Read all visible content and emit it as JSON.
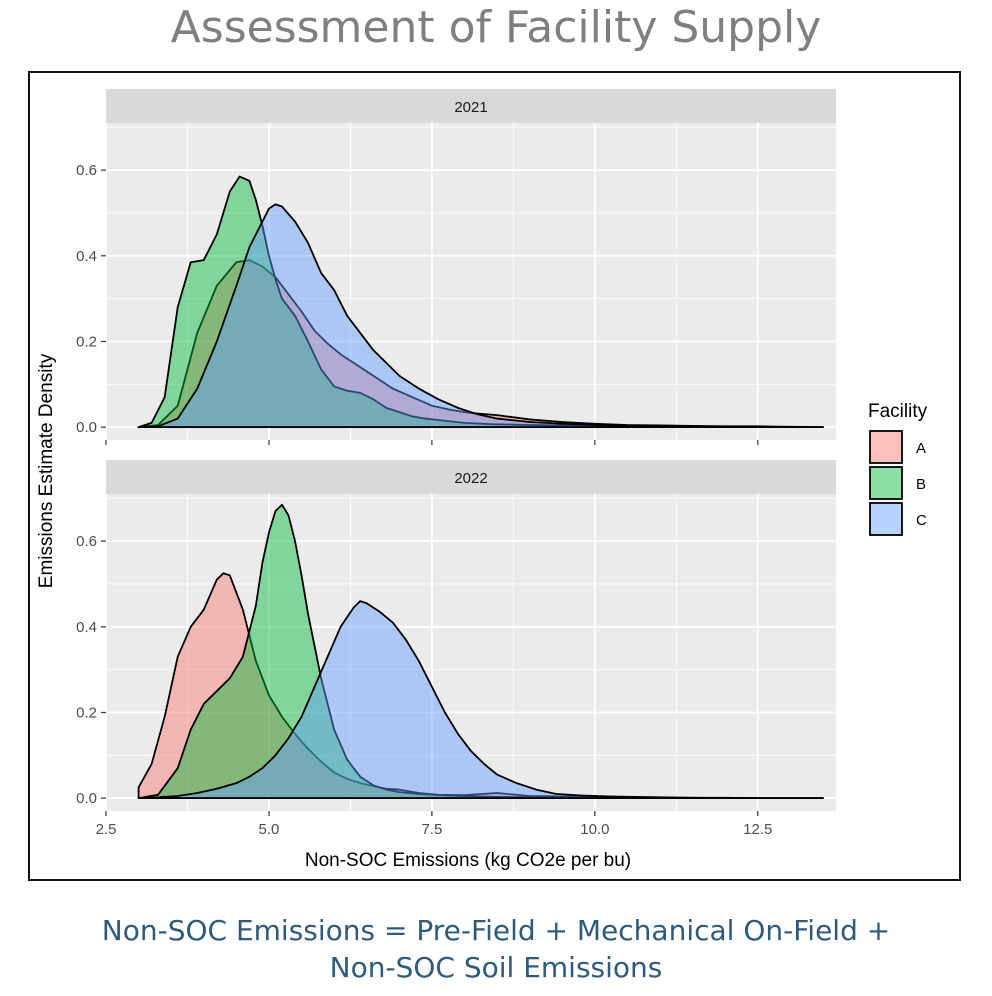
{
  "page": {
    "title": "Assessment of Facility Supply",
    "caption_line1": "Non-SOC Emissions = Pre-Field + Mechanical On-Field +",
    "caption_line2": "Non-SOC Soil Emissions"
  },
  "chart_data": {
    "type": "area",
    "subtype": "density, faceted by year",
    "xlabel": "Non-SOC Emissions (kg CO2e per bu)",
    "ylabel": "Emissions Estimate Density",
    "xlim": [
      2.5,
      13.7
    ],
    "ylim": [
      -0.03,
      0.71
    ],
    "x_ticks": [
      2.5,
      5.0,
      7.5,
      10.0,
      12.5
    ],
    "x_tick_labels": [
      "2.5",
      "5.0",
      "7.5",
      "10.0",
      "12.5"
    ],
    "y_ticks": [
      0.0,
      0.2,
      0.4,
      0.6
    ],
    "y_tick_labels": [
      "0.0",
      "0.2",
      "0.4",
      "0.6"
    ],
    "grid": true,
    "legend": {
      "title": "Facility",
      "position": "right",
      "entries": [
        {
          "label": "A",
          "color": "#F8766D"
        },
        {
          "label": "B",
          "color": "#00BA38"
        },
        {
          "label": "C",
          "color": "#619CFF"
        }
      ]
    },
    "facets": [
      {
        "label": "2021",
        "series": [
          {
            "name": "A",
            "color": "#F8766D",
            "x": [
              3.0,
              3.3,
              3.6,
              3.9,
              4.2,
              4.5,
              4.7,
              4.9,
              5.1,
              5.3,
              5.5,
              5.7,
              5.9,
              6.1,
              6.3,
              6.6,
              6.9,
              7.2,
              7.5,
              7.8,
              8.1,
              8.5,
              9.0,
              9.5,
              10.0,
              10.5,
              11.0,
              11.5,
              12.0,
              12.5,
              13.0,
              13.5
            ],
            "y": [
              0.0,
              0.005,
              0.05,
              0.22,
              0.33,
              0.385,
              0.39,
              0.375,
              0.35,
              0.31,
              0.27,
              0.225,
              0.195,
              0.17,
              0.15,
              0.12,
              0.09,
              0.07,
              0.05,
              0.04,
              0.033,
              0.028,
              0.018,
              0.012,
              0.008,
              0.005,
              0.004,
              0.003,
              0.002,
              0.002,
              0.001,
              0.0
            ]
          },
          {
            "name": "B",
            "color": "#00BA38",
            "x": [
              3.0,
              3.2,
              3.4,
              3.6,
              3.8,
              4.0,
              4.2,
              4.4,
              4.55,
              4.7,
              4.8,
              4.9,
              5.0,
              5.1,
              5.2,
              5.4,
              5.6,
              5.8,
              6.0,
              6.2,
              6.4,
              6.6,
              6.8,
              7.0,
              7.2,
              7.4,
              7.7,
              8.0,
              8.4,
              9.0,
              9.5,
              10.0,
              10.5,
              11.0,
              11.5,
              12.0,
              12.5,
              13.0,
              13.5
            ],
            "y": [
              0.0,
              0.01,
              0.07,
              0.28,
              0.385,
              0.39,
              0.45,
              0.55,
              0.585,
              0.575,
              0.53,
              0.47,
              0.4,
              0.345,
              0.3,
              0.26,
              0.2,
              0.135,
              0.095,
              0.085,
              0.08,
              0.065,
              0.045,
              0.035,
              0.025,
              0.02,
              0.015,
              0.01,
              0.007,
              0.005,
              0.004,
              0.003,
              0.003,
              0.002,
              0.001,
              0.001,
              0.0,
              0.0,
              0.0
            ]
          },
          {
            "name": "C",
            "color": "#619CFF",
            "x": [
              3.0,
              3.3,
              3.6,
              3.9,
              4.2,
              4.5,
              4.7,
              4.9,
              5.0,
              5.1,
              5.2,
              5.4,
              5.6,
              5.8,
              6.0,
              6.2,
              6.4,
              6.6,
              6.8,
              7.0,
              7.3,
              7.6,
              7.9,
              8.2,
              8.5,
              9.0,
              9.5,
              10.0,
              10.5,
              11.0,
              11.5,
              12.0,
              12.5,
              13.0,
              13.5
            ],
            "y": [
              0.0,
              0.002,
              0.02,
              0.09,
              0.2,
              0.33,
              0.42,
              0.48,
              0.51,
              0.52,
              0.515,
              0.48,
              0.43,
              0.36,
              0.32,
              0.26,
              0.22,
              0.18,
              0.15,
              0.12,
              0.09,
              0.065,
              0.045,
              0.03,
              0.02,
              0.012,
              0.008,
              0.005,
              0.004,
              0.003,
              0.002,
              0.001,
              0.001,
              0.0,
              0.0
            ]
          }
        ]
      },
      {
        "label": "2022",
        "series": [
          {
            "name": "A",
            "color": "#F8766D",
            "x": [
              3.0,
              3.2,
              3.4,
              3.6,
              3.8,
              4.0,
              4.2,
              4.3,
              4.4,
              4.6,
              4.8,
              5.0,
              5.2,
              5.4,
              5.6,
              5.8,
              6.0,
              6.2,
              6.4,
              6.6,
              6.8,
              7.0,
              7.3,
              7.6,
              8.0,
              8.5,
              9.0,
              9.5,
              10.0,
              10.5,
              11.0,
              11.5,
              12.0,
              12.5,
              13.0,
              13.5
            ],
            "y": [
              0.025,
              0.08,
              0.19,
              0.33,
              0.4,
              0.44,
              0.51,
              0.525,
              0.52,
              0.44,
              0.32,
              0.24,
              0.19,
              0.15,
              0.115,
              0.085,
              0.06,
              0.045,
              0.035,
              0.028,
              0.022,
              0.02,
              0.012,
              0.008,
              0.007,
              0.012,
              0.005,
              0.004,
              0.003,
              0.002,
              0.001,
              0.001,
              0.0,
              0.0,
              0.0,
              0.0
            ]
          },
          {
            "name": "B",
            "color": "#00BA38",
            "x": [
              3.0,
              3.3,
              3.6,
              3.8,
              4.0,
              4.2,
              4.4,
              4.6,
              4.8,
              4.9,
              5.0,
              5.1,
              5.2,
              5.3,
              5.4,
              5.5,
              5.6,
              5.8,
              6.0,
              6.2,
              6.4,
              6.6,
              6.8,
              7.0,
              7.3,
              7.6,
              8.0,
              8.5,
              9.0,
              9.5,
              10.0,
              10.5,
              11.0,
              11.5,
              12.0,
              12.5,
              13.0,
              13.5
            ],
            "y": [
              0.0,
              0.008,
              0.07,
              0.16,
              0.22,
              0.25,
              0.28,
              0.33,
              0.45,
              0.55,
              0.62,
              0.67,
              0.685,
              0.66,
              0.6,
              0.52,
              0.43,
              0.28,
              0.16,
              0.09,
              0.05,
              0.03,
              0.02,
              0.014,
              0.01,
              0.007,
              0.005,
              0.003,
              0.002,
              0.001,
              0.001,
              0.0,
              0.0,
              0.0,
              0.0,
              0.0,
              0.0,
              0.0
            ]
          },
          {
            "name": "C",
            "color": "#619CFF",
            "x": [
              3.0,
              3.3,
              3.6,
              3.9,
              4.2,
              4.5,
              4.7,
              4.9,
              5.1,
              5.3,
              5.5,
              5.7,
              5.9,
              6.1,
              6.3,
              6.4,
              6.5,
              6.6,
              6.7,
              6.9,
              7.1,
              7.3,
              7.5,
              7.7,
              7.9,
              8.1,
              8.3,
              8.5,
              8.8,
              9.1,
              9.4,
              9.8,
              10.2,
              10.6,
              11.0,
              11.5,
              12.0,
              12.5,
              13.0,
              13.5
            ],
            "y": [
              0.0,
              0.002,
              0.005,
              0.012,
              0.022,
              0.035,
              0.05,
              0.07,
              0.1,
              0.14,
              0.19,
              0.26,
              0.33,
              0.4,
              0.445,
              0.46,
              0.455,
              0.445,
              0.435,
              0.41,
              0.37,
              0.32,
              0.26,
              0.2,
              0.15,
              0.11,
              0.08,
              0.055,
              0.035,
              0.02,
              0.01,
              0.006,
              0.004,
              0.003,
              0.002,
              0.001,
              0.001,
              0.0,
              0.0,
              0.0
            ]
          }
        ]
      }
    ]
  }
}
